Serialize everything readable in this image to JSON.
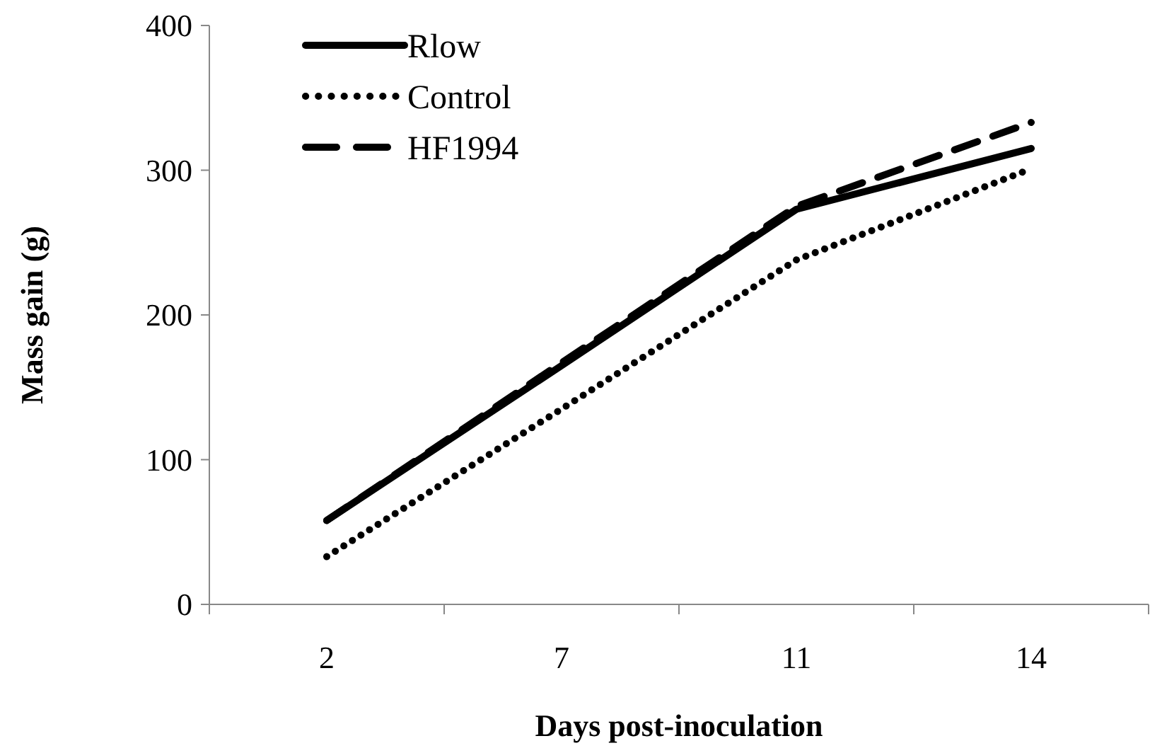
{
  "chart_data": {
    "type": "line",
    "xlabel": "Days post-inoculation",
    "ylabel": "Mass gain (g)",
    "categories": [
      "2",
      "7",
      "11",
      "14"
    ],
    "ylim": [
      0,
      400
    ],
    "yticks": [
      0,
      100,
      200,
      300,
      400
    ],
    "grid": false,
    "legend": "top left",
    "series": [
      {
        "name": "Rlow",
        "color": "#000000",
        "line_style": "solid",
        "values": [
          58,
          165,
          273,
          315
        ]
      },
      {
        "name": "Control",
        "color": "#000000",
        "line_style": "dotted",
        "values": [
          33,
          135,
          238,
          301
        ]
      },
      {
        "name": "HF1994",
        "color": "#000000",
        "line_style": "dashed",
        "values": [
          58,
          167,
          275,
          333
        ]
      }
    ]
  }
}
